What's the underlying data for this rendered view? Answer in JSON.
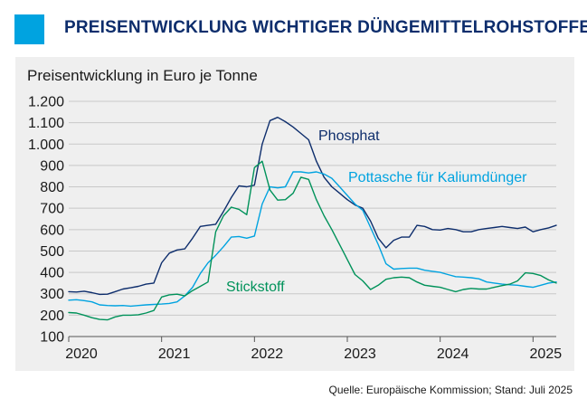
{
  "header": {
    "title": "PREISENTWICKLUNG WICHTIGER DÜNGEMITTELROHSTOFFE",
    "title_color": "#0d2d6c",
    "accent_color": "#00a3e0"
  },
  "source": "Quelle: Europäische Kommission; Stand: Juli 2025",
  "chart_data": {
    "type": "line",
    "ylabel": "Preisentwicklung in Euro je Tonne",
    "ylim": [
      100,
      1200
    ],
    "yticks": [
      "1.200",
      "1.100",
      "1.000",
      "900",
      "800",
      "700",
      "600",
      "500",
      "400",
      "300",
      "200",
      "100"
    ],
    "ytick_values": [
      1200,
      1100,
      1000,
      900,
      800,
      700,
      600,
      500,
      400,
      300,
      200,
      100
    ],
    "xlim": [
      2020.0,
      2025.25
    ],
    "xticks": [
      "2020",
      "2021",
      "2022",
      "2023",
      "2024",
      "2025"
    ],
    "xtick_values": [
      2020,
      2021,
      2022,
      2023,
      2024,
      2025
    ],
    "grid": true,
    "legend": "inline labels",
    "series": [
      {
        "name": "Phosphat",
        "color": "#0d2d6c",
        "x": [
          2020.0,
          2020.083,
          2020.167,
          2020.25,
          2020.333,
          2020.417,
          2020.5,
          2020.583,
          2020.667,
          2020.75,
          2020.833,
          2020.917,
          2021.0,
          2021.083,
          2021.167,
          2021.25,
          2021.333,
          2021.417,
          2021.5,
          2021.583,
          2021.667,
          2021.75,
          2021.833,
          2021.917,
          2022.0,
          2022.083,
          2022.167,
          2022.25,
          2022.333,
          2022.417,
          2022.5,
          2022.583,
          2022.667,
          2022.75,
          2022.833,
          2022.917,
          2023.0,
          2023.083,
          2023.167,
          2023.25,
          2023.333,
          2023.417,
          2023.5,
          2023.583,
          2023.667,
          2023.75,
          2023.833,
          2023.917,
          2024.0,
          2024.083,
          2024.167,
          2024.25,
          2024.333,
          2024.417,
          2024.5,
          2024.583,
          2024.667,
          2024.75,
          2024.833,
          2024.917,
          2025.0,
          2025.083,
          2025.167,
          2025.25
        ],
        "values": [
          310,
          308,
          312,
          305,
          297,
          298,
          310,
          322,
          328,
          335,
          345,
          350,
          445,
          490,
          505,
          510,
          560,
          615,
          620,
          625,
          685,
          750,
          805,
          800,
          808,
          1000,
          1110,
          1125,
          1105,
          1080,
          1050,
          1020,
          920,
          845,
          800,
          770,
          740,
          715,
          700,
          640,
          560,
          515,
          550,
          565,
          565,
          620,
          615,
          600,
          598,
          605,
          600,
          590,
          590,
          600,
          605,
          610,
          615,
          610,
          605,
          612,
          590,
          600,
          608,
          620
        ]
      },
      {
        "name": "Pottasche für Kaliumdünger",
        "color": "#00a3e0",
        "x": [
          2020.0,
          2020.083,
          2020.167,
          2020.25,
          2020.333,
          2020.417,
          2020.5,
          2020.583,
          2020.667,
          2020.75,
          2020.833,
          2020.917,
          2021.0,
          2021.083,
          2021.167,
          2021.25,
          2021.333,
          2021.417,
          2021.5,
          2021.583,
          2021.667,
          2021.75,
          2021.833,
          2021.917,
          2022.0,
          2022.083,
          2022.167,
          2022.25,
          2022.333,
          2022.417,
          2022.5,
          2022.583,
          2022.667,
          2022.75,
          2022.833,
          2022.917,
          2023.0,
          2023.083,
          2023.167,
          2023.25,
          2023.333,
          2023.417,
          2023.5,
          2023.583,
          2023.667,
          2023.75,
          2023.833,
          2023.917,
          2024.0,
          2024.083,
          2024.167,
          2024.25,
          2024.333,
          2024.417,
          2024.5,
          2024.583,
          2024.667,
          2024.75,
          2024.833,
          2024.917,
          2025.0,
          2025.083,
          2025.167,
          2025.25
        ],
        "values": [
          270,
          272,
          268,
          262,
          248,
          245,
          244,
          245,
          242,
          245,
          248,
          250,
          252,
          255,
          262,
          290,
          330,
          395,
          445,
          480,
          520,
          565,
          568,
          560,
          570,
          720,
          800,
          795,
          800,
          870,
          870,
          865,
          870,
          860,
          840,
          800,
          760,
          720,
          690,
          610,
          530,
          440,
          415,
          418,
          420,
          420,
          410,
          405,
          400,
          390,
          380,
          378,
          375,
          370,
          355,
          350,
          345,
          342,
          340,
          335,
          330,
          340,
          350,
          355
        ]
      },
      {
        "name": "Stickstoff",
        "color": "#00925a",
        "x": [
          2020.0,
          2020.083,
          2020.167,
          2020.25,
          2020.333,
          2020.417,
          2020.5,
          2020.583,
          2020.667,
          2020.75,
          2020.833,
          2020.917,
          2021.0,
          2021.083,
          2021.167,
          2021.25,
          2021.333,
          2021.417,
          2021.5,
          2021.583,
          2021.667,
          2021.75,
          2021.833,
          2021.917,
          2022.0,
          2022.083,
          2022.167,
          2022.25,
          2022.333,
          2022.417,
          2022.5,
          2022.583,
          2022.667,
          2022.75,
          2022.833,
          2022.917,
          2023.0,
          2023.083,
          2023.167,
          2023.25,
          2023.333,
          2023.417,
          2023.5,
          2023.583,
          2023.667,
          2023.75,
          2023.833,
          2023.917,
          2024.0,
          2024.083,
          2024.167,
          2024.25,
          2024.333,
          2024.417,
          2024.5,
          2024.583,
          2024.667,
          2024.75,
          2024.833,
          2024.917,
          2025.0,
          2025.083,
          2025.167,
          2025.25
        ],
        "values": [
          212,
          210,
          200,
          188,
          180,
          178,
          192,
          200,
          200,
          202,
          210,
          222,
          285,
          295,
          298,
          290,
          315,
          335,
          355,
          590,
          665,
          705,
          695,
          670,
          890,
          920,
          785,
          738,
          740,
          770,
          845,
          835,
          740,
          665,
          600,
          530,
          460,
          390,
          360,
          320,
          340,
          368,
          375,
          378,
          375,
          355,
          340,
          335,
          330,
          320,
          310,
          320,
          325,
          322,
          322,
          330,
          338,
          345,
          360,
          398,
          395,
          385,
          365,
          350
        ]
      }
    ],
    "series_label_colors": {
      "Phosphat": "#0d2d6c",
      "Pottasche für Kaliumdünger": "#00a3e0",
      "Stickstoff": "#00925a"
    }
  }
}
